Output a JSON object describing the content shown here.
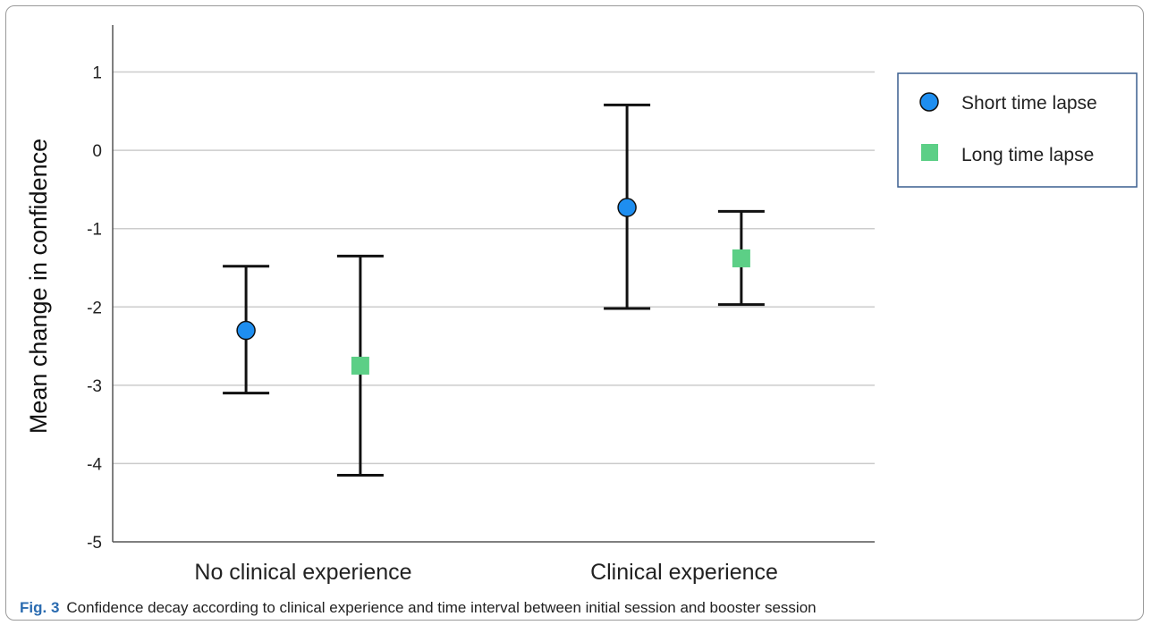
{
  "chart_data": {
    "type": "scatter",
    "categories": [
      "No clinical experience",
      "Clinical experience"
    ],
    "ylabel": "Mean change in confidence",
    "xlabel": "",
    "ylim": [
      -5,
      1.6
    ],
    "yticks": [
      1,
      0,
      -1,
      -2,
      -3,
      -4,
      -5
    ],
    "grid": true,
    "legend_position": "top-right",
    "series": [
      {
        "name": "Short time lapse",
        "marker": "circle",
        "color": "#1e8ef0",
        "values": [
          -2.3,
          -0.73
        ],
        "ci_low": [
          -3.1,
          -2.02
        ],
        "ci_high": [
          -1.48,
          0.58
        ]
      },
      {
        "name": "Long time lapse",
        "marker": "square",
        "color": "#5ccf86",
        "values": [
          -2.75,
          -1.38
        ],
        "ci_low": [
          -4.15,
          -1.97
        ],
        "ci_high": [
          -1.35,
          -0.78
        ]
      }
    ]
  },
  "caption": {
    "label": "Fig. 3",
    "text": "Confidence decay according to clinical experience and time interval between initial session and booster session"
  }
}
